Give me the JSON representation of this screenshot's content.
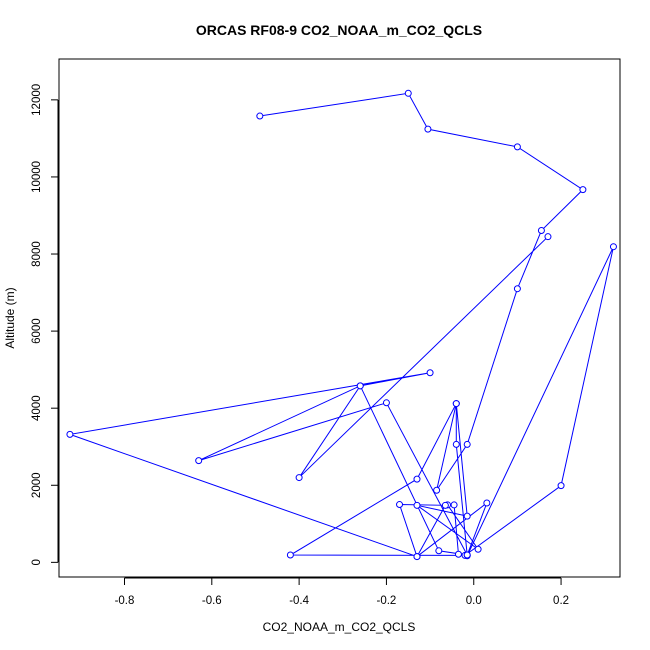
{
  "chart_data": {
    "type": "line",
    "title": "ORCAS RF08-9 CO2_NOAA_m_CO2_QCLS",
    "xlabel": "CO2_NOAA_m_CO2_QCLS",
    "ylabel": "Altitude (m)",
    "xlim": [
      -0.95,
      0.335
    ],
    "ylim": [
      -380,
      13060
    ],
    "xticks": [
      -0.8,
      -0.6,
      -0.4,
      -0.2,
      0.0,
      0.2
    ],
    "xtick_labels": [
      "-0.8",
      "-0.6",
      "-0.4",
      "-0.2",
      "0.0",
      "0.2"
    ],
    "yticks": [
      0,
      2000,
      4000,
      6000,
      8000,
      10000,
      12000
    ],
    "ytick_labels": [
      "0",
      "2000",
      "4000",
      "6000",
      "8000",
      "10000",
      "12000"
    ],
    "grid": false,
    "series_color": "#0000ff",
    "series": [
      {
        "x": [
          -0.49,
          -0.15,
          -0.105,
          0.1,
          0.25,
          0.155,
          0.1,
          -0.015,
          -0.085,
          -0.04,
          -0.015,
          -0.13,
          0.01,
          -0.06,
          -0.045,
          -0.035,
          -0.015,
          0.32,
          0.2,
          -0.02,
          -0.42,
          -0.13,
          -0.04,
          -0.04,
          -0.015,
          -0.2,
          -0.63,
          -0.26,
          -0.1,
          -0.925,
          -0.13,
          -0.17,
          -0.065,
          -0.13,
          0.03,
          -0.015,
          -0.08,
          -0.26,
          -0.4,
          0.17
        ],
        "y": [
          11580,
          12170,
          11240,
          10780,
          9670,
          8610,
          7100,
          3060,
          1870,
          4120,
          1200,
          1480,
          340,
          1490,
          1490,
          210,
          170,
          8190,
          1990,
          180,
          190,
          2160,
          4120,
          3060,
          190,
          4140,
          2640,
          4580,
          4920,
          3320,
          150,
          1500,
          1480,
          150,
          1540,
          190,
          300,
          4580,
          2200,
          8450
        ]
      }
    ]
  }
}
